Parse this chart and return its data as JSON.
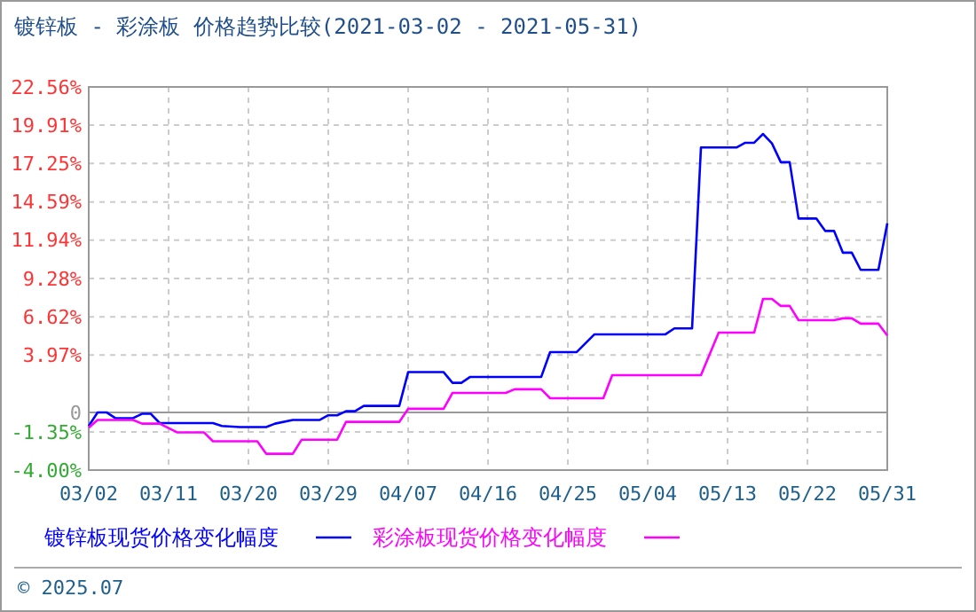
{
  "chart_data": {
    "type": "line",
    "title": "镀锌板 - 彩涂板 价格趋势比较(2021-03-02 - 2021-05-31)",
    "xlim": [
      "2021-03-02",
      "2021-05-31"
    ],
    "xticks": [
      {
        "value": "2021-03-02",
        "label": "03/02"
      },
      {
        "value": "2021-03-11",
        "label": "03/11"
      },
      {
        "value": "2021-03-20",
        "label": "03/20"
      },
      {
        "value": "2021-03-29",
        "label": "03/29"
      },
      {
        "value": "2021-04-07",
        "label": "04/07"
      },
      {
        "value": "2021-04-16",
        "label": "04/16"
      },
      {
        "value": "2021-04-25",
        "label": "04/25"
      },
      {
        "value": "2021-05-04",
        "label": "05/04"
      },
      {
        "value": "2021-05-13",
        "label": "05/13"
      },
      {
        "value": "2021-05-22",
        "label": "05/22"
      },
      {
        "value": "2021-05-31",
        "label": "05/31"
      }
    ],
    "ylim": [
      -4,
      22.56
    ],
    "yticks": [
      {
        "value": -4,
        "label": "-4.00%"
      },
      {
        "value": -1.35,
        "label": "-1.35%"
      },
      0,
      {
        "value": 3.97,
        "label": "3.97%"
      },
      {
        "value": 6.62,
        "label": "6.62%"
      },
      {
        "value": 9.28,
        "label": "9.28%"
      },
      {
        "value": 11.94,
        "label": "11.94%"
      },
      {
        "value": 14.59,
        "label": "14.59%"
      },
      {
        "value": 17.25,
        "label": "17.25%"
      },
      {
        "value": 19.91,
        "label": "19.91%"
      },
      {
        "value": 22.56,
        "label": "22.56%"
      }
    ],
    "grid": true,
    "legend": "bottom",
    "marker": "none",
    "line_style": "solid",
    "ref_lines": [
      {
        "axis": "y",
        "value": 0,
        "color": "#999999"
      }
    ],
    "annotations": [
      "© 2025.07"
    ],
    "series": [
      {
        "name": "镀锌板现货价格变化幅度",
        "color": "#0000ff",
        "x": [
          "2021-03-02",
          "2021-03-03",
          "2021-03-04",
          "2021-03-05",
          "2021-03-07",
          "2021-03-08",
          "2021-03-09",
          "2021-03-10",
          "2021-03-16",
          "2021-03-17",
          "2021-03-19",
          "2021-03-22",
          "2021-03-23",
          "2021-03-25",
          "2021-03-28",
          "2021-03-29",
          "2021-03-30",
          "2021-03-31",
          "2021-04-01",
          "2021-04-02",
          "2021-04-06",
          "2021-04-07",
          "2021-04-11",
          "2021-04-12",
          "2021-04-13",
          "2021-04-14",
          "2021-04-22",
          "2021-04-23",
          "2021-04-26",
          "2021-04-28",
          "2021-05-06",
          "2021-05-07",
          "2021-05-09",
          "2021-05-10",
          "2021-05-14",
          "2021-05-15",
          "2021-05-16",
          "2021-05-17",
          "2021-05-18",
          "2021-05-19",
          "2021-05-20",
          "2021-05-21",
          "2021-05-23",
          "2021-05-24",
          "2021-05-25",
          "2021-05-26",
          "2021-05-27",
          "2021-05-28",
          "2021-05-30",
          "2021-05-31"
        ],
        "values": [
          -0.94,
          0,
          0,
          -0.4,
          -0.4,
          -0.1,
          -0.1,
          -0.74,
          -0.74,
          -0.94,
          -1.02,
          -1.02,
          -0.78,
          -0.53,
          -0.53,
          -0.2,
          -0.2,
          0.08,
          0.08,
          0.45,
          0.45,
          2.79,
          2.79,
          2.05,
          2.05,
          2.46,
          2.46,
          4.18,
          4.18,
          5.41,
          5.41,
          5.82,
          5.82,
          18.36,
          18.36,
          18.69,
          18.69,
          19.3,
          18.65,
          17.34,
          17.34,
          13.44,
          13.44,
          12.58,
          12.58,
          11.07,
          11.07,
          9.88,
          9.88,
          13.1
        ]
      },
      {
        "name": "彩涂板现货价格变化幅度",
        "color": "#ff00ff",
        "x": [
          "2021-03-02",
          "2021-03-03",
          "2021-03-07",
          "2021-03-08",
          "2021-03-10",
          "2021-03-12",
          "2021-03-15",
          "2021-03-16",
          "2021-03-21",
          "2021-03-22",
          "2021-03-25",
          "2021-03-26",
          "2021-03-30",
          "2021-03-31",
          "2021-04-06",
          "2021-04-07",
          "2021-04-11",
          "2021-04-12",
          "2021-04-18",
          "2021-04-19",
          "2021-04-22",
          "2021-04-23",
          "2021-04-29",
          "2021-04-30",
          "2021-05-10",
          "2021-05-12",
          "2021-05-16",
          "2021-05-17",
          "2021-05-18",
          "2021-05-19",
          "2021-05-20",
          "2021-05-21",
          "2021-05-25",
          "2021-05-26",
          "2021-05-27",
          "2021-05-28",
          "2021-05-30",
          "2021-05-31"
        ],
        "values": [
          -1.07,
          -0.53,
          -0.53,
          -0.78,
          -0.78,
          -1.39,
          -1.39,
          -2,
          -2,
          -2.87,
          -2.87,
          -1.89,
          -1.89,
          -0.66,
          -0.66,
          0.25,
          0.25,
          1.35,
          1.35,
          1.6,
          1.6,
          0.98,
          0.98,
          2.58,
          2.58,
          5.53,
          5.53,
          7.87,
          7.87,
          7.38,
          7.38,
          6.39,
          6.39,
          6.52,
          6.52,
          6.15,
          6.15,
          5.33
        ]
      }
    ]
  }
}
